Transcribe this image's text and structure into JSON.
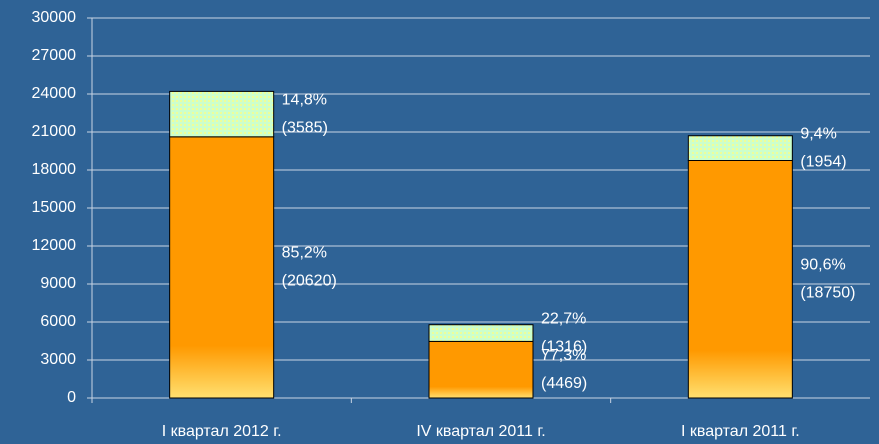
{
  "chart_data": {
    "type": "stacked_bar",
    "categories": [
      "I квартал 2012 г.",
      "IV квартал 2011 г.",
      "I квартал 2011 г."
    ],
    "series": [
      {
        "color": "#ff9900",
        "values": [
          20620,
          4469,
          18750
        ],
        "value_labels": [
          "(20620)",
          "(4469)",
          "(18750)"
        ],
        "shares": [
          85.2,
          77.3,
          90.6
        ],
        "share_labels": [
          "85,2%",
          "77,3%",
          "90,6%"
        ]
      },
      {
        "color": "#ccffcc",
        "values": [
          3585,
          1316,
          1954
        ],
        "value_labels": [
          "(3585)",
          "(1316)",
          "(1954)"
        ],
        "shares": [
          14.8,
          22.7,
          9.4
        ],
        "share_labels": [
          "14,8%",
          "22,7%",
          "9,4%"
        ]
      }
    ],
    "ylim": [
      0,
      30000
    ],
    "yticks": [
      0,
      3000,
      6000,
      9000,
      12000,
      15000,
      18000,
      21000,
      24000,
      27000,
      30000
    ],
    "grid": true
  }
}
